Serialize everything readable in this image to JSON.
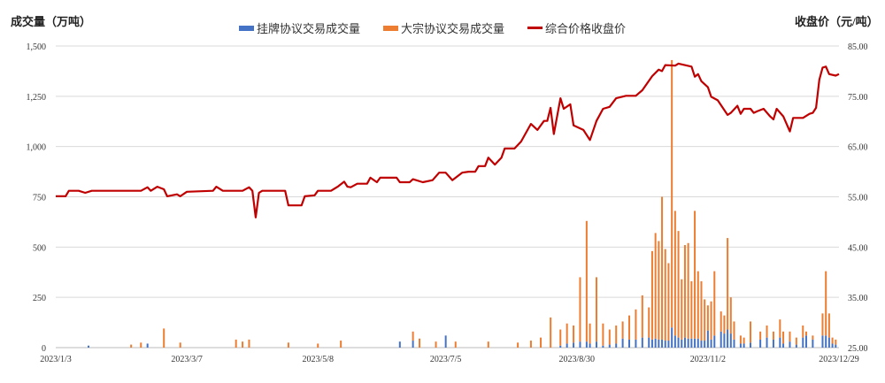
{
  "chart_data": {
    "type": "bar+line",
    "left_axis_title": "成交量（万吨）",
    "right_axis_title": "收盘价（元/吨）",
    "left_ylim": [
      0,
      1500
    ],
    "left_ticks": [
      "0",
      "250",
      "500",
      "750",
      "1,000",
      "1,250",
      "1,500"
    ],
    "right_ylim": [
      25,
      85
    ],
    "right_ticks": [
      "25.00",
      "35.00",
      "45.00",
      "55.00",
      "65.00",
      "75.00",
      "85.00"
    ],
    "x_count": 240,
    "x_tick_labels": [
      {
        "index": 0,
        "label": "2023/1/3"
      },
      {
        "index": 40,
        "label": "2023/3/7"
      },
      {
        "index": 80,
        "label": "2023/5/8"
      },
      {
        "index": 119,
        "label": "2023/7/5"
      },
      {
        "index": 159,
        "label": "2023/8/30"
      },
      {
        "index": 199,
        "label": "2023/11/2"
      },
      {
        "index": 239,
        "label": "2023/12/29"
      }
    ],
    "grid": true,
    "legend_position": "top",
    "series": [
      {
        "name": "挂牌协议交易成交量",
        "type": "bar",
        "axis": "left",
        "color": "#4472C4"
      },
      {
        "name": "大宗协议交易成交量",
        "type": "bar",
        "axis": "left",
        "color": "#ED7D31"
      },
      {
        "name": "综合价格收盘价",
        "type": "line",
        "axis": "right",
        "color": "#C00000"
      }
    ],
    "bars": [
      [
        10,
        10,
        0
      ],
      [
        23,
        0,
        15
      ],
      [
        26,
        0,
        25
      ],
      [
        28,
        20,
        0
      ],
      [
        33,
        0,
        95
      ],
      [
        38,
        0,
        25
      ],
      [
        55,
        0,
        40
      ],
      [
        57,
        0,
        30
      ],
      [
        59,
        0,
        40
      ],
      [
        71,
        0,
        25
      ],
      [
        80,
        0,
        20
      ],
      [
        87,
        0,
        35
      ],
      [
        105,
        30,
        0
      ],
      [
        109,
        35,
        45
      ],
      [
        111,
        0,
        45
      ],
      [
        116,
        0,
        30
      ],
      [
        119,
        60,
        0
      ],
      [
        122,
        0,
        30
      ],
      [
        132,
        0,
        30
      ],
      [
        141,
        0,
        25
      ],
      [
        145,
        0,
        35
      ],
      [
        148,
        0,
        50
      ],
      [
        151,
        0,
        150
      ],
      [
        154,
        10,
        80
      ],
      [
        156,
        20,
        100
      ],
      [
        158,
        25,
        85
      ],
      [
        160,
        30,
        320
      ],
      [
        162,
        30,
        600
      ],
      [
        163,
        20,
        100
      ],
      [
        165,
        30,
        320
      ],
      [
        167,
        10,
        110
      ],
      [
        169,
        15,
        75
      ],
      [
        171,
        20,
        90
      ],
      [
        173,
        45,
        85
      ],
      [
        175,
        40,
        120
      ],
      [
        177,
        40,
        150
      ],
      [
        179,
        50,
        210
      ],
      [
        181,
        50,
        150
      ],
      [
        182,
        40,
        440
      ],
      [
        183,
        45,
        525
      ],
      [
        184,
        40,
        490
      ],
      [
        185,
        40,
        710
      ],
      [
        186,
        35,
        455
      ],
      [
        187,
        35,
        385
      ],
      [
        188,
        100,
        1330
      ],
      [
        189,
        60,
        620
      ],
      [
        190,
        50,
        530
      ],
      [
        191,
        40,
        300
      ],
      [
        192,
        50,
        460
      ],
      [
        193,
        45,
        475
      ],
      [
        194,
        45,
        285
      ],
      [
        195,
        45,
        635
      ],
      [
        196,
        45,
        335
      ],
      [
        197,
        35,
        295
      ],
      [
        198,
        35,
        205
      ],
      [
        199,
        85,
        125
      ],
      [
        200,
        40,
        190
      ],
      [
        201,
        60,
        320
      ],
      [
        203,
        80,
        100
      ],
      [
        204,
        70,
        90
      ],
      [
        205,
        90,
        455
      ],
      [
        206,
        70,
        180
      ],
      [
        207,
        40,
        90
      ],
      [
        209,
        20,
        40
      ],
      [
        210,
        20,
        30
      ],
      [
        212,
        25,
        105
      ],
      [
        215,
        40,
        40
      ],
      [
        217,
        50,
        60
      ],
      [
        219,
        40,
        40
      ],
      [
        221,
        50,
        90
      ],
      [
        222,
        20,
        60
      ],
      [
        224,
        30,
        50
      ],
      [
        226,
        15,
        35
      ],
      [
        228,
        50,
        60
      ],
      [
        229,
        60,
        20
      ],
      [
        231,
        40,
        20
      ],
      [
        234,
        60,
        110
      ],
      [
        235,
        60,
        320
      ],
      [
        236,
        50,
        120
      ],
      [
        237,
        20,
        30
      ],
      [
        238,
        15,
        25
      ]
    ],
    "price": [
      [
        0,
        55.1
      ],
      [
        3,
        55.1
      ],
      [
        4,
        56.2
      ],
      [
        7,
        56.2
      ],
      [
        9,
        55.8
      ],
      [
        11,
        56.2
      ],
      [
        26,
        56.2
      ],
      [
        28,
        56.9
      ],
      [
        29,
        56.2
      ],
      [
        31,
        57.0
      ],
      [
        33,
        56.5
      ],
      [
        34,
        55.1
      ],
      [
        37,
        55.5
      ],
      [
        38,
        55.1
      ],
      [
        40,
        56.0
      ],
      [
        48,
        56.2
      ],
      [
        49,
        57.0
      ],
      [
        51,
        56.2
      ],
      [
        57,
        56.2
      ],
      [
        59,
        56.9
      ],
      [
        60,
        56.2
      ],
      [
        61,
        50.9
      ],
      [
        62,
        55.8
      ],
      [
        63,
        56.2
      ],
      [
        70,
        56.2
      ],
      [
        71,
        53.3
      ],
      [
        75,
        53.3
      ],
      [
        76,
        55.1
      ],
      [
        79,
        55.3
      ],
      [
        80,
        56.2
      ],
      [
        84,
        56.2
      ],
      [
        86,
        57.0
      ],
      [
        88,
        58.0
      ],
      [
        89,
        57.0
      ],
      [
        90,
        56.9
      ],
      [
        92,
        57.6
      ],
      [
        95,
        57.6
      ],
      [
        96,
        58.8
      ],
      [
        98,
        57.9
      ],
      [
        99,
        58.8
      ],
      [
        104,
        58.8
      ],
      [
        105,
        57.9
      ],
      [
        108,
        57.9
      ],
      [
        109,
        58.5
      ],
      [
        112,
        57.9
      ],
      [
        115,
        58.3
      ],
      [
        117,
        59.8
      ],
      [
        119,
        59.8
      ],
      [
        121,
        58.3
      ],
      [
        124,
        59.8
      ],
      [
        126,
        60.0
      ],
      [
        128,
        60.0
      ],
      [
        129,
        61.1
      ],
      [
        131,
        61.1
      ],
      [
        132,
        62.8
      ],
      [
        134,
        61.4
      ],
      [
        136,
        62.8
      ],
      [
        137,
        64.6
      ],
      [
        140,
        64.6
      ],
      [
        142,
        66.0
      ],
      [
        145,
        69.5
      ],
      [
        147,
        68.3
      ],
      [
        149,
        70.1
      ],
      [
        150,
        70.1
      ],
      [
        151,
        72.7
      ],
      [
        152,
        67.5
      ],
      [
        154,
        74.6
      ],
      [
        155,
        72.5
      ],
      [
        157,
        73.4
      ],
      [
        158,
        69.2
      ],
      [
        161,
        68.3
      ],
      [
        163,
        66.3
      ],
      [
        165,
        70.1
      ],
      [
        167,
        72.5
      ],
      [
        169,
        72.9
      ],
      [
        171,
        74.6
      ],
      [
        174,
        75.1
      ],
      [
        177,
        75.1
      ],
      [
        179,
        76.2
      ],
      [
        182,
        79.0
      ],
      [
        184,
        80.3
      ],
      [
        185,
        80.0
      ],
      [
        186,
        81.2
      ],
      [
        189,
        81.1
      ],
      [
        190,
        81.5
      ],
      [
        194,
        80.9
      ],
      [
        195,
        78.9
      ],
      [
        196,
        79.4
      ],
      [
        197,
        78.0
      ],
      [
        199,
        76.8
      ],
      [
        200,
        74.9
      ],
      [
        202,
        74.2
      ],
      [
        205,
        71.3
      ],
      [
        206,
        71.7
      ],
      [
        208,
        73.1
      ],
      [
        209,
        71.5
      ],
      [
        210,
        72.5
      ],
      [
        212,
        72.5
      ],
      [
        213,
        71.7
      ],
      [
        214,
        72.0
      ],
      [
        216,
        72.5
      ],
      [
        218,
        71.0
      ],
      [
        219,
        70.4
      ],
      [
        220,
        72.5
      ],
      [
        222,
        71.0
      ],
      [
        224,
        68.0
      ],
      [
        225,
        70.7
      ],
      [
        228,
        70.7
      ],
      [
        230,
        71.5
      ],
      [
        231,
        71.7
      ],
      [
        232,
        72.7
      ],
      [
        233,
        78.3
      ],
      [
        234,
        80.7
      ],
      [
        235,
        80.9
      ],
      [
        236,
        79.4
      ],
      [
        238,
        79.1
      ],
      [
        239,
        79.4
      ]
    ]
  }
}
